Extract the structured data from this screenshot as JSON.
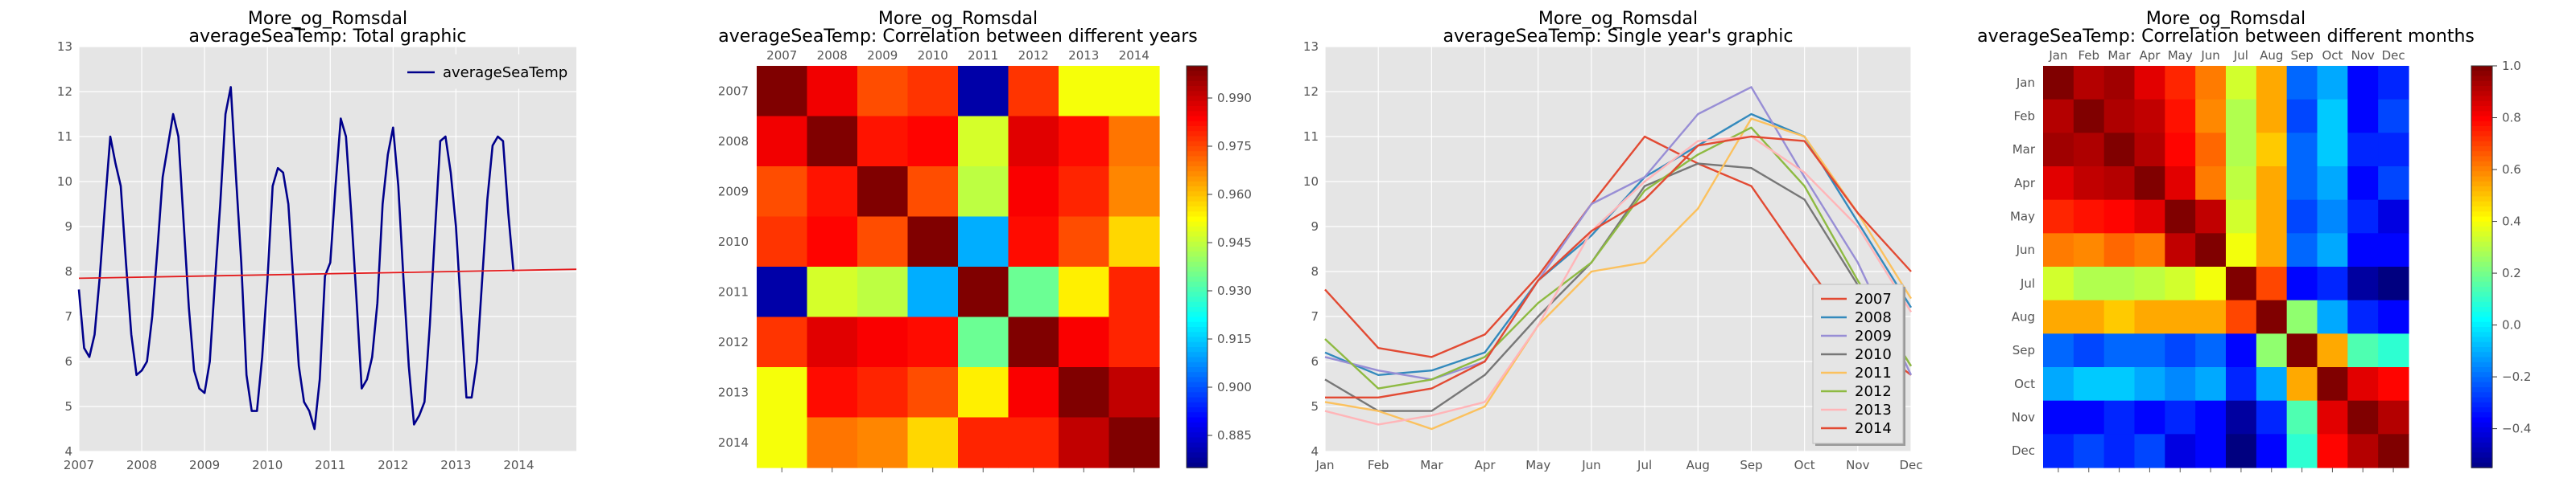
{
  "chart_data": [
    {
      "type": "line",
      "title_line1": "More_og_Romsdal",
      "title_line2": "averageSeaTemp: Total graphic",
      "xlabel": "",
      "ylabel": "",
      "x_ticks": [
        "2007",
        "2008",
        "2009",
        "2010",
        "2011",
        "2012",
        "2013",
        "2014"
      ],
      "xlim": [
        "2007-01",
        "2014-12"
      ],
      "ylim": [
        4,
        13
      ],
      "y_ticks": [
        "4",
        "5",
        "6",
        "7",
        "8",
        "9",
        "10",
        "11",
        "12",
        "13"
      ],
      "grid": true,
      "legend_position": "top-right",
      "series": [
        {
          "name": "averageSeaTemp",
          "color": "#00008b",
          "x_start": "2007-01",
          "values": [
            7.6,
            6.3,
            6.1,
            6.6,
            7.9,
            9.5,
            11.0,
            10.4,
            9.9,
            8.2,
            6.6,
            5.7,
            5.8,
            6.0,
            7.0,
            8.5,
            10.1,
            10.8,
            11.5,
            11.0,
            9.1,
            7.2,
            5.8,
            5.4,
            5.3,
            6.0,
            7.8,
            9.5,
            11.5,
            12.1,
            10.1,
            8.2,
            5.7,
            4.9,
            4.9,
            6.1,
            7.8,
            9.9,
            10.3,
            10.2,
            9.5,
            7.7,
            5.9,
            5.1,
            4.9,
            4.5,
            5.6,
            7.9,
            8.2,
            9.9,
            11.4,
            11.0,
            9.3,
            7.4,
            5.4,
            5.6,
            6.1,
            7.3,
            9.5,
            10.6,
            11.2,
            9.9,
            7.8,
            5.9,
            4.6,
            4.8,
            5.1,
            6.8,
            8.9,
            10.9,
            11.0,
            10.2,
            9.0,
            7.1,
            5.2,
            5.2,
            6.0,
            7.8,
            9.6,
            10.8,
            11.0,
            10.9,
            9.3,
            8.0
          ]
        },
        {
          "name": "",
          "kind": "trend",
          "color": "#e41a1c",
          "x": [
            "2007-01",
            "2014-12"
          ],
          "values": [
            7.85,
            8.05
          ]
        }
      ]
    },
    {
      "type": "heatmap",
      "title_line1": "More_og_Romsdal",
      "title_line2": "averageSeaTemp: Correlation between different years",
      "x_categories": [
        "2007",
        "2008",
        "2009",
        "2010",
        "2011",
        "2012",
        "2013",
        "2014"
      ],
      "y_categories": [
        "2007",
        "2008",
        "2009",
        "2010",
        "2011",
        "2012",
        "2013",
        "2014"
      ],
      "vmin": 0.875,
      "vmax": 1.0,
      "colorbar_ticks": [
        "0.885",
        "0.900",
        "0.915",
        "0.930",
        "0.945",
        "0.960",
        "0.975",
        "0.990"
      ],
      "colorbar_values": [
        0.885,
        0.9,
        0.915,
        0.93,
        0.945,
        0.96,
        0.975,
        0.99
      ],
      "matrix": [
        [
          1.0,
          0.986,
          0.975,
          0.978,
          0.88,
          0.978,
          0.952,
          0.952
        ],
        [
          0.986,
          1.0,
          0.982,
          0.984,
          0.948,
          0.988,
          0.983,
          0.97
        ],
        [
          0.975,
          0.982,
          1.0,
          0.975,
          0.945,
          0.985,
          0.98,
          0.968
        ],
        [
          0.978,
          0.984,
          0.975,
          1.0,
          0.912,
          0.983,
          0.975,
          0.958
        ],
        [
          0.88,
          0.948,
          0.945,
          0.912,
          1.0,
          0.935,
          0.955,
          0.98
        ],
        [
          0.978,
          0.988,
          0.985,
          0.983,
          0.935,
          1.0,
          0.985,
          0.98
        ],
        [
          0.952,
          0.983,
          0.98,
          0.975,
          0.955,
          0.985,
          1.0,
          0.992
        ],
        [
          0.952,
          0.97,
          0.968,
          0.958,
          0.98,
          0.98,
          0.992,
          1.0
        ]
      ]
    },
    {
      "type": "line",
      "title_line1": "More_og_Romsdal",
      "title_line2": "averageSeaTemp: Single year's graphic",
      "categories": [
        "Jan",
        "Feb",
        "Mar",
        "Apr",
        "May",
        "Jun",
        "Jul",
        "Aug",
        "Sep",
        "Oct",
        "Nov",
        "Dec"
      ],
      "ylim": [
        4,
        13
      ],
      "y_ticks": [
        "4",
        "5",
        "6",
        "7",
        "8",
        "9",
        "10",
        "11",
        "12",
        "13"
      ],
      "grid": true,
      "legend_position": "bottom-right",
      "series": [
        {
          "name": "2007",
          "color": "#e24a33",
          "values": [
            7.6,
            6.3,
            6.1,
            6.6,
            7.9,
            9.5,
            11.0,
            10.4,
            9.9,
            8.2,
            6.6,
            5.7
          ]
        },
        {
          "name": "2008",
          "color": "#348abd",
          "values": [
            6.2,
            5.7,
            5.8,
            6.2,
            7.8,
            8.8,
            10.1,
            10.8,
            11.5,
            11.0,
            9.1,
            7.2
          ]
        },
        {
          "name": "2009",
          "color": "#988ed5",
          "values": [
            6.1,
            5.8,
            5.6,
            6.0,
            7.8,
            9.5,
            10.1,
            11.5,
            12.1,
            10.1,
            8.2,
            5.7
          ]
        },
        {
          "name": "2010",
          "color": "#777777",
          "values": [
            5.6,
            4.9,
            4.9,
            5.7,
            7.0,
            8.2,
            9.9,
            10.4,
            10.3,
            9.6,
            7.7,
            5.9
          ]
        },
        {
          "name": "2011",
          "color": "#fbc15e",
          "values": [
            5.1,
            4.9,
            4.5,
            5.0,
            6.8,
            8.0,
            8.2,
            9.4,
            11.4,
            11.0,
            9.3,
            7.4
          ]
        },
        {
          "name": "2012",
          "color": "#8eba42",
          "values": [
            6.5,
            5.4,
            5.6,
            6.1,
            7.3,
            8.2,
            9.8,
            10.6,
            11.2,
            9.9,
            7.8,
            5.9
          ]
        },
        {
          "name": "2013",
          "color": "#ffb5b8",
          "values": [
            4.9,
            4.6,
            4.8,
            5.1,
            6.8,
            8.9,
            10.0,
            10.9,
            11.0,
            10.2,
            9.0,
            7.1
          ]
        },
        {
          "name": "2014",
          "color": "#e24a33",
          "values": [
            5.2,
            5.2,
            5.4,
            6.0,
            7.8,
            8.9,
            9.6,
            10.8,
            11.0,
            10.9,
            9.3,
            8.0
          ]
        }
      ]
    },
    {
      "type": "heatmap",
      "title_line1": "More_og_Romsdal",
      "title_line2": "averageSeaTemp: Correlation between different months",
      "x_categories": [
        "Jan",
        "Feb",
        "Mar",
        "Apr",
        "May",
        "Jun",
        "Jul",
        "Aug",
        "Sep",
        "Oct",
        "Nov",
        "Dec"
      ],
      "y_categories": [
        "Jan",
        "Feb",
        "Mar",
        "Apr",
        "May",
        "Jun",
        "Jul",
        "Aug",
        "Sep",
        "Oct",
        "Nov",
        "Dec"
      ],
      "vmin": -0.55,
      "vmax": 1.0,
      "colorbar_ticks": [
        "1.0",
        "0.8",
        "0.6",
        "0.4",
        "0.2",
        "0.0",
        "−0.2",
        "−0.4"
      ],
      "colorbar_values": [
        1.0,
        0.8,
        0.6,
        0.4,
        0.2,
        0.0,
        -0.2,
        -0.4
      ],
      "matrix": [
        [
          1.0,
          0.92,
          0.95,
          0.85,
          0.75,
          0.62,
          0.35,
          0.55,
          -0.2,
          -0.1,
          -0.35,
          -0.3
        ],
        [
          0.92,
          1.0,
          0.93,
          0.9,
          0.78,
          0.6,
          0.3,
          0.55,
          -0.25,
          -0.05,
          -0.35,
          -0.25
        ],
        [
          0.95,
          0.93,
          1.0,
          0.92,
          0.8,
          0.65,
          0.3,
          0.5,
          -0.2,
          -0.05,
          -0.3,
          -0.3
        ],
        [
          0.85,
          0.9,
          0.92,
          1.0,
          0.85,
          0.62,
          0.32,
          0.55,
          -0.2,
          -0.1,
          -0.35,
          -0.25
        ],
        [
          0.75,
          0.78,
          0.8,
          0.85,
          1.0,
          0.9,
          0.35,
          0.55,
          -0.25,
          -0.15,
          -0.3,
          -0.4
        ],
        [
          0.62,
          0.6,
          0.65,
          0.62,
          0.9,
          1.0,
          0.4,
          0.55,
          -0.2,
          -0.1,
          -0.35,
          -0.35
        ],
        [
          0.35,
          0.3,
          0.3,
          0.32,
          0.35,
          0.4,
          1.0,
          0.7,
          -0.35,
          -0.3,
          -0.5,
          -0.55
        ],
        [
          0.55,
          0.55,
          0.5,
          0.55,
          0.55,
          0.55,
          0.7,
          1.0,
          0.25,
          -0.1,
          -0.3,
          -0.35
        ],
        [
          -0.2,
          -0.25,
          -0.2,
          -0.2,
          -0.25,
          -0.2,
          -0.35,
          0.25,
          1.0,
          0.55,
          0.15,
          0.1
        ],
        [
          -0.1,
          -0.05,
          -0.05,
          -0.1,
          -0.15,
          -0.1,
          -0.3,
          -0.1,
          0.55,
          1.0,
          0.85,
          0.8
        ],
        [
          -0.35,
          -0.35,
          -0.3,
          -0.35,
          -0.3,
          -0.35,
          -0.5,
          -0.3,
          0.15,
          0.85,
          1.0,
          0.92
        ],
        [
          -0.3,
          -0.25,
          -0.3,
          -0.25,
          -0.4,
          -0.35,
          -0.55,
          -0.35,
          0.1,
          0.8,
          0.92,
          1.0
        ]
      ]
    }
  ]
}
